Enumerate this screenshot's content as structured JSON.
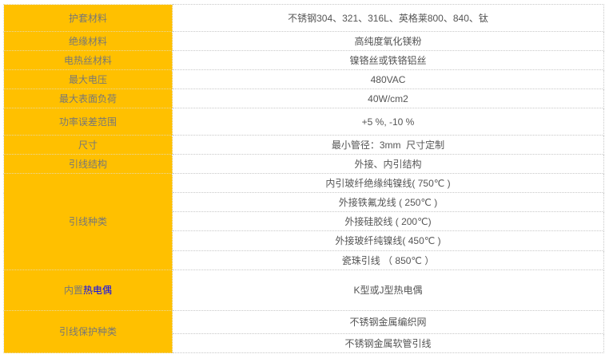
{
  "colors": {
    "label_bg": "#FFC000",
    "highlight_text": "#0000FF"
  },
  "rows": [
    {
      "label": "护套材料",
      "value": "不锈钢304、321、316L、英格莱800、840、钛"
    },
    {
      "label": "绝缘材料",
      "value": "高纯度氧化镁粉"
    },
    {
      "label": "电热丝材料",
      "value": "镍铬丝或铁铬铝丝"
    },
    {
      "label": "最大电压",
      "value": "480VAC"
    },
    {
      "label": "最大表面负荷",
      "value": "40W/cm2"
    },
    {
      "label": "功率误差范围",
      "value": "+5 %, -10 %"
    },
    {
      "label": "尺寸",
      "value": "最小管径：3mm  尺寸定制"
    },
    {
      "label": "引线结构",
      "value": "外接、内引结构"
    }
  ],
  "lead_types": {
    "label": "引线种类",
    "values": [
      "内引玻纤绝缘纯镍线( 750℃ )",
      "外接铁氟龙线 ( 250℃ )",
      "外接硅胶线 ( 200℃)",
      "外接玻纤纯镍线( 450℃ )",
      "瓷珠引线 （ 850℃ ）"
    ]
  },
  "thermocouple": {
    "label_prefix": "内置",
    "label_highlight": "热电偶",
    "value": "K型或J型热电偶"
  },
  "lead_protection": {
    "label": "引线保护种类",
    "values": [
      "不锈钢金属编织网",
      "不锈钢金属软管引线"
    ]
  }
}
